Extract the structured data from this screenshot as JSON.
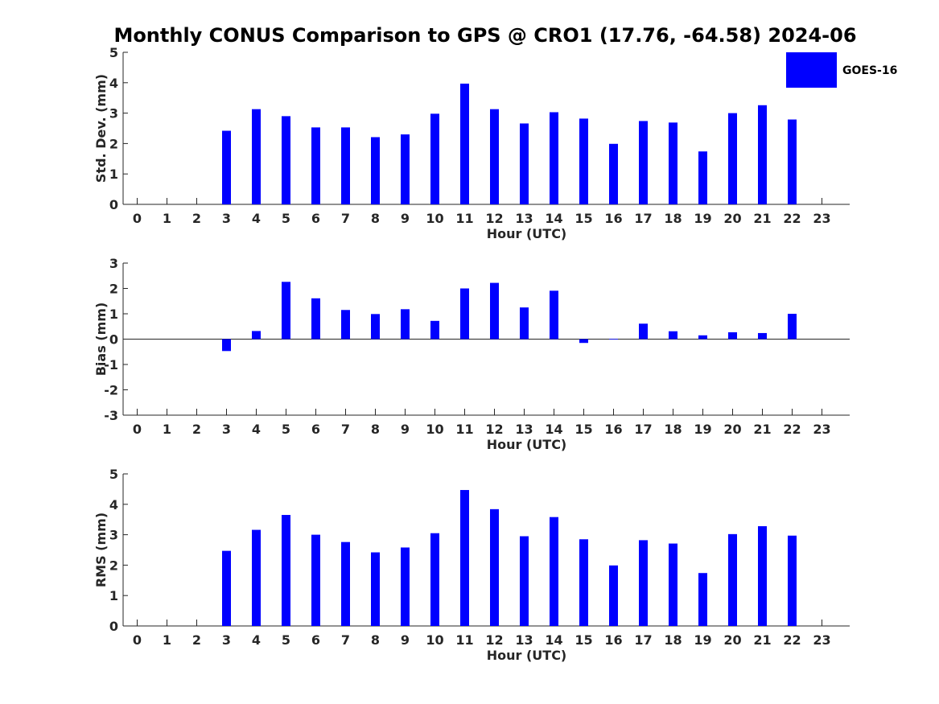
{
  "title": "Monthly CONUS Comparison to GPS @ CRO1 (17.76, -64.58) 2024-06",
  "legend": {
    "label": "GOES-16",
    "color": "#0000ff",
    "placement": "top-right"
  },
  "chart_data": [
    {
      "type": "bar",
      "ylabel": "Std. Dev. (mm)",
      "xlabel": "Hour (UTC)",
      "categories": [
        0,
        1,
        2,
        3,
        4,
        5,
        6,
        7,
        8,
        9,
        10,
        11,
        12,
        13,
        14,
        15,
        16,
        17,
        18,
        19,
        20,
        21,
        22,
        23
      ],
      "yticks": [
        0,
        1,
        2,
        3,
        4,
        5
      ],
      "ylim": [
        0,
        5
      ],
      "grid": false,
      "series": [
        {
          "name": "GOES-16",
          "values": [
            null,
            null,
            null,
            2.42,
            3.13,
            2.9,
            2.53,
            2.53,
            2.21,
            2.3,
            2.98,
            3.97,
            3.13,
            2.66,
            3.03,
            2.82,
            1.99,
            2.74,
            2.69,
            1.74,
            3.0,
            3.26,
            2.79,
            null
          ]
        }
      ]
    },
    {
      "type": "bar",
      "ylabel": "Bias (mm)",
      "xlabel": "Hour (UTC)",
      "categories": [
        0,
        1,
        2,
        3,
        4,
        5,
        6,
        7,
        8,
        9,
        10,
        11,
        12,
        13,
        14,
        15,
        16,
        17,
        18,
        19,
        20,
        21,
        22,
        23
      ],
      "yticks": [
        -3,
        -2,
        -1,
        0,
        1,
        2,
        3
      ],
      "ylim": [
        -3,
        3
      ],
      "grid": false,
      "series": [
        {
          "name": "GOES-16",
          "values": [
            null,
            null,
            null,
            -0.47,
            0.32,
            2.26,
            1.61,
            1.15,
            0.99,
            1.18,
            0.72,
            2.0,
            2.22,
            1.25,
            1.91,
            -0.15,
            0.01,
            0.61,
            0.31,
            0.15,
            0.27,
            0.24,
            1.0,
            null
          ]
        }
      ]
    },
    {
      "type": "bar",
      "ylabel": "RMS (mm)",
      "xlabel": "Hour (UTC)",
      "categories": [
        0,
        1,
        2,
        3,
        4,
        5,
        6,
        7,
        8,
        9,
        10,
        11,
        12,
        13,
        14,
        15,
        16,
        17,
        18,
        19,
        20,
        21,
        22,
        23
      ],
      "yticks": [
        0,
        1,
        2,
        3,
        4,
        5
      ],
      "ylim": [
        0,
        5
      ],
      "grid": false,
      "series": [
        {
          "name": "GOES-16",
          "values": [
            null,
            null,
            null,
            2.47,
            3.16,
            3.65,
            3.0,
            2.76,
            2.42,
            2.58,
            3.05,
            4.47,
            3.84,
            2.95,
            3.58,
            2.85,
            1.99,
            2.82,
            2.71,
            1.74,
            3.02,
            3.28,
            2.97,
            null
          ]
        }
      ]
    }
  ]
}
